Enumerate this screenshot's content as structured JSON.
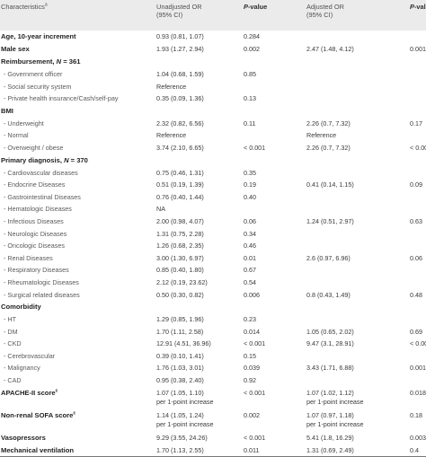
{
  "headers": {
    "characteristics": "Characteristics",
    "characteristics_sup": "a",
    "unadjusted": "Unadjusted OR",
    "unadjusted_ci": "(95% CI)",
    "p1_italic": "P",
    "p1_rest": "-value",
    "adjusted": "Adjusted OR",
    "adjusted_ci": "(95% CI)",
    "p2_italic": "P",
    "p2_rest": "-value"
  },
  "rows": [
    {
      "label": "Age, 10-year increment",
      "uor": "0.93 (0.81, 1.07)",
      "p1": "0.284",
      "aor": "",
      "p2": ""
    },
    {
      "label": "Male sex",
      "uor": "1.93 (1.27, 2.94)",
      "p1": "0.002",
      "aor": "2.47 (1.48, 4.12)",
      "p2": "0.001"
    },
    {
      "label": "Reimbursement, ",
      "n_label": "N",
      "n_value": " = 361",
      "uor": "",
      "p1": "",
      "aor": "",
      "p2": ""
    },
    {
      "label": "- Government officer",
      "uor": "1.04 (0.68, 1.59)",
      "p1": "0.85",
      "aor": "",
      "p2": ""
    },
    {
      "label": "- Social security system",
      "uor": "Reference",
      "p1": "",
      "aor": "",
      "p2": ""
    },
    {
      "label": "- Private health insurance/Cash/self-pay",
      "uor": "0.35 (0.09, 1.36)",
      "p1": "0.13",
      "aor": "",
      "p2": ""
    },
    {
      "label": "BMI",
      "uor": "",
      "p1": "",
      "aor": "",
      "p2": ""
    },
    {
      "label": "- Underweight",
      "uor": "2.32 (0.82, 6.56)",
      "p1": "0.11",
      "aor": "2.26 (0.7, 7.32)",
      "p2": "0.17"
    },
    {
      "label": "- Normal",
      "uor": "Reference",
      "p1": "",
      "aor": "Reference",
      "p2": ""
    },
    {
      "label": "- Overweight / obese",
      "uor": "3.74 (2.10, 6.65)",
      "p1": "< 0.001",
      "aor": "2.26 (0.7, 7.32)",
      "p2": "< 0.001"
    },
    {
      "label": "Primary diagnosis, ",
      "n_label": "N",
      "n_value": " = 370",
      "uor": "",
      "p1": "",
      "aor": "",
      "p2": ""
    },
    {
      "label": "- Cardiovascular diseases",
      "uor": "0.75 (0.46, 1.31)",
      "p1": "0.35",
      "aor": "",
      "p2": ""
    },
    {
      "label": "- Endocrine Diseases",
      "uor": "0.51 (0.19, 1.39)",
      "p1": "0.19",
      "aor": "0.41 (0.14, 1.15)",
      "p2": "0.09"
    },
    {
      "label": "- Gastrointestinal Diseases",
      "uor": "0.76 (0.40, 1.44)",
      "p1": "0.40",
      "aor": "",
      "p2": ""
    },
    {
      "label": "- Hematologic Diseases",
      "uor": "NA",
      "p1": "",
      "aor": "",
      "p2": ""
    },
    {
      "label": "- Infectious Diseases",
      "uor": "2.00 (0.98, 4.07)",
      "p1": "0.06",
      "aor": "1.24 (0.51, 2.97)",
      "p2": "0.63"
    },
    {
      "label": "- Neurologic Diseases",
      "uor": "1.31 (0.75, 2.28)",
      "p1": "0.34",
      "aor": "",
      "p2": ""
    },
    {
      "label": "- Oncologic Diseases",
      "uor": "1.26 (0.68, 2.35)",
      "p1": "0.46",
      "aor": "",
      "p2": ""
    },
    {
      "label": "- Renal Diseases",
      "uor": "3.00 (1.30, 6.97)",
      "p1": "0.01",
      "aor": "2.6 (0.97, 6.96)",
      "p2": "0.06"
    },
    {
      "label": "- Respiratory Diseases",
      "uor": "0.85 (0.40, 1.80)",
      "p1": "0.67",
      "aor": "",
      "p2": ""
    },
    {
      "label": "- Rheumatologic Diseases",
      "uor": "2.12 (0.19, 23.62)",
      "p1": "0.54",
      "aor": "",
      "p2": ""
    },
    {
      "label": "- Surgical related diseases",
      "uor": "0.50 (0.30, 0.82)",
      "p1": "0.006",
      "aor": "0.8 (0.43, 1.49)",
      "p2": "0.48"
    },
    {
      "label": "Comorbidity",
      "uor": "",
      "p1": "",
      "aor": "",
      "p2": ""
    },
    {
      "label": "- HT",
      "uor": "1.29 (0.85, 1.96)",
      "p1": "0.23",
      "aor": "",
      "p2": ""
    },
    {
      "label": "- DM",
      "uor": "1.70 (1.11, 2.58)",
      "p1": "0.014",
      "aor": "1.05 (0.65, 2.02)",
      "p2": "0.69"
    },
    {
      "label": "- CKD",
      "uor": "12.91 (4.51, 36.96)",
      "p1": "< 0.001",
      "aor": "9.47 (3.1, 28.91)",
      "p2": "< 0.001"
    },
    {
      "label": "- Cerebrovascular",
      "uor": "0.39 (0.10, 1.41)",
      "p1": "0.15",
      "aor": "",
      "p2": ""
    },
    {
      "label": "- Malignancy",
      "uor": "1.76 (1.03, 3.01)",
      "p1": "0.039",
      "aor": "3.43 (1.71, 6.88)",
      "p2": "0.001"
    },
    {
      "label": "- CAD",
      "uor": "0.95 (0.38, 2.40)",
      "p1": "0.92",
      "aor": "",
      "p2": ""
    },
    {
      "label": "APACHE-II score",
      "sup": "c",
      "uor": "1.07 (1.05, 1.10)",
      "uor2": "per 1-point increase",
      "p1": "< 0.001",
      "aor": "1.07 (1.02, 1.12)",
      "aor2": "per 1-point increase",
      "p2": "0.018"
    },
    {
      "label": "Non-renal SOFA score",
      "sup": "c",
      "uor": "1.14 (1.05, 1.24)",
      "uor2": "per 1-point increase",
      "p1": "0.002",
      "aor": "1.07 (0.97, 1.18)",
      "aor2": "per 1-point increase",
      "p2": "0.18"
    },
    {
      "label": "Vasopressors",
      "uor": "9.29 (3.55, 24.26)",
      "p1": "< 0.001",
      "aor": "5.41 (1.8, 16.29)",
      "p2": "0.003"
    },
    {
      "label": "Mechanical ventilation",
      "uor": "1.70 (1.13, 2.55)",
      "p1": "0.011",
      "aor": "1.31 (0.69, 2.49)",
      "p2": "0.4"
    }
  ]
}
